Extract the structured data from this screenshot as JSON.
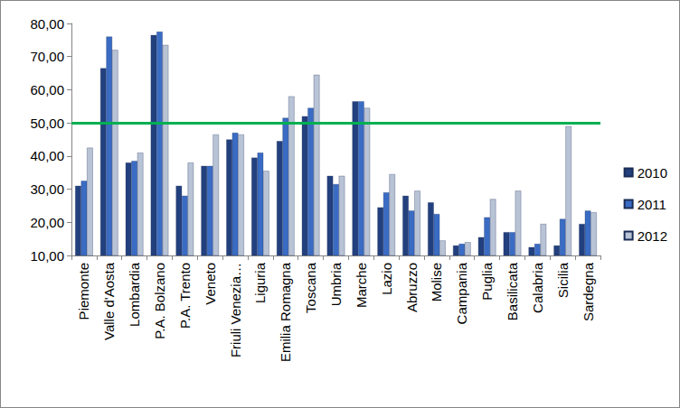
{
  "chart_data": {
    "type": "bar",
    "categories": [
      "Piemonte",
      "Valle d'Aosta",
      "Lombardia",
      "P.A. Bolzano",
      "P.A. Trento",
      "Veneto",
      "Friuli Venezia…",
      "Liguria",
      "Emilia Romagna",
      "Toscana",
      "Umbria",
      "Marche",
      "Lazio",
      "Abruzzo",
      "Molise",
      "Campania",
      "Puglia",
      "Basilicata",
      "Calabria",
      "Sicilia",
      "Sardegna"
    ],
    "series": [
      {
        "name": "2010",
        "color": "#23407e",
        "values": [
          31,
          66.5,
          38,
          76.5,
          31,
          37,
          45,
          39.5,
          44.5,
          52,
          34,
          56.5,
          24.5,
          28,
          26,
          13,
          15.5,
          17,
          12.5,
          13,
          19.5
        ]
      },
      {
        "name": "2011",
        "color": "#3a6cc4",
        "values": [
          32.5,
          76,
          38.5,
          77.5,
          28,
          37,
          47,
          41,
          51.5,
          54.5,
          31.5,
          56.5,
          29,
          23.5,
          22.5,
          13.5,
          21.5,
          17,
          13.5,
          21,
          23.5
        ]
      },
      {
        "name": "2012",
        "color": "#b9c3d6",
        "values": [
          42.5,
          72,
          41,
          73.5,
          38,
          46.5,
          46.5,
          35.5,
          58,
          64.5,
          34,
          54.5,
          34.5,
          29.5,
          14.5,
          14,
          27,
          29.5,
          19.5,
          49,
          23
        ]
      }
    ],
    "ylim": [
      10,
      80
    ],
    "yticks": [
      {
        "value": 10,
        "label": "10,00"
      },
      {
        "value": 20,
        "label": "20,00"
      },
      {
        "value": 30,
        "label": "30,00"
      },
      {
        "value": 40,
        "label": "40,00"
      },
      {
        "value": 50,
        "label": "50,00"
      },
      {
        "value": 60,
        "label": "60,00"
      },
      {
        "value": 70,
        "label": "70,00"
      },
      {
        "value": 80,
        "label": "80,00"
      }
    ],
    "reference_line": {
      "value": 50,
      "color": "#00b050"
    },
    "grid": false,
    "legend": "right"
  }
}
